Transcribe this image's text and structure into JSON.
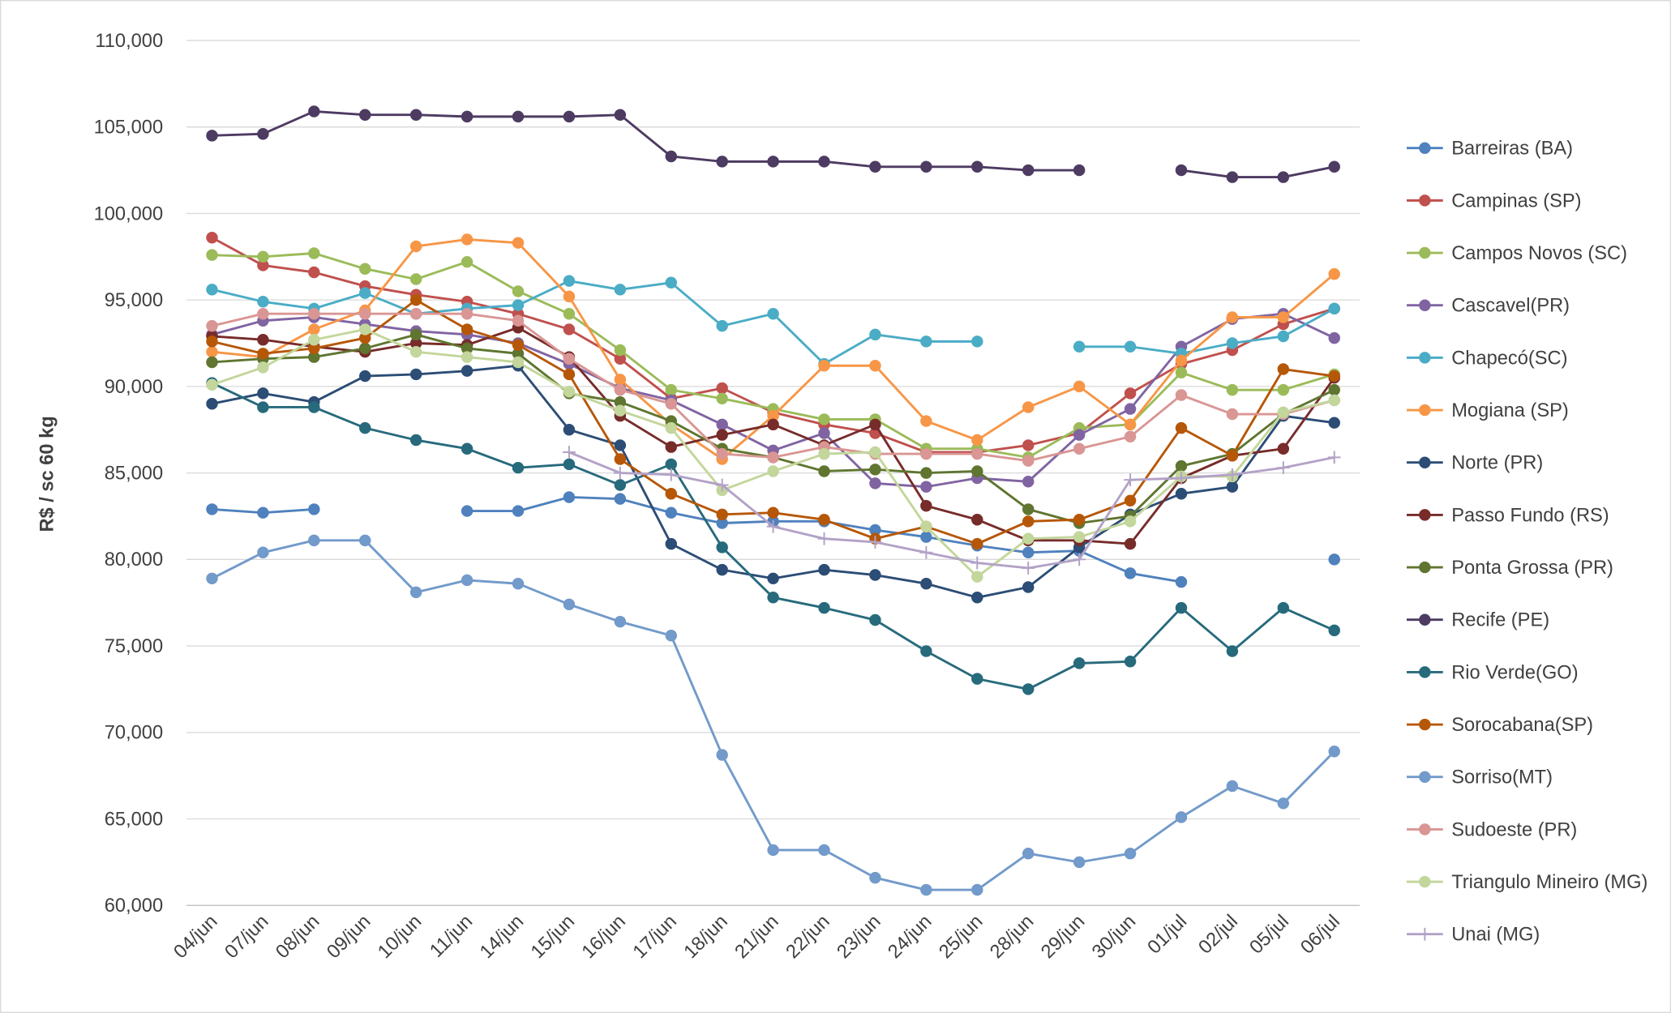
{
  "chart_data": {
    "type": "line",
    "y_label": "R$ / sc 60 kg",
    "categories": [
      "04/jun",
      "07/jun",
      "08/jun",
      "09/jun",
      "10/jun",
      "11/jun",
      "14/jun",
      "15/jun",
      "16/jun",
      "17/jun",
      "18/jun",
      "21/jun",
      "22/jun",
      "23/jun",
      "24/jun",
      "25/jun",
      "28/jun",
      "29/jun",
      "30/jun",
      "01/jul",
      "02/jul",
      "05/jul",
      "06/jul"
    ],
    "ylim": [
      60000,
      110000
    ],
    "yticks": [
      {
        "value": 60000,
        "label": "60,000"
      },
      {
        "value": 65000,
        "label": "65,000"
      },
      {
        "value": 70000,
        "label": "70,000"
      },
      {
        "value": 75000,
        "label": "75,000"
      },
      {
        "value": 80000,
        "label": "80,000"
      },
      {
        "value": 85000,
        "label": "85,000"
      },
      {
        "value": 90000,
        "label": "90,000"
      },
      {
        "value": 95000,
        "label": "95,000"
      },
      {
        "value": 100000,
        "label": "100,000"
      },
      {
        "value": 105000,
        "label": "105,000"
      },
      {
        "value": 110000,
        "label": "110,000"
      }
    ],
    "grid": true,
    "legend": "right",
    "series": [
      {
        "name": "Barreiras (BA)",
        "color": "#4f81bd",
        "marker": "circle",
        "values": [
          82900,
          82700,
          82900,
          null,
          null,
          82800,
          82800,
          83600,
          83500,
          82700,
          82100,
          82200,
          82200,
          81700,
          81300,
          80800,
          80400,
          80500,
          79200,
          78700,
          null,
          null,
          80000
        ]
      },
      {
        "name": "Campinas (SP)",
        "color": "#c0504d",
        "marker": "circle",
        "values": [
          98600,
          97000,
          96600,
          95800,
          95300,
          94900,
          94200,
          93300,
          91600,
          89300,
          89900,
          88500,
          87800,
          87300,
          86200,
          86200,
          86600,
          87300,
          89600,
          91300,
          92100,
          93600,
          94500
        ]
      },
      {
        "name": "Campos Novos (SC)",
        "color": "#9bbb59",
        "marker": "circle",
        "values": [
          97600,
          97500,
          97700,
          96800,
          96200,
          97200,
          95500,
          94200,
          92100,
          89800,
          89300,
          88700,
          88100,
          88100,
          86400,
          86400,
          85900,
          87600,
          87800,
          90800,
          89800,
          89800,
          90700
        ]
      },
      {
        "name": "Cascavel(PR)",
        "color": "#8064a2",
        "marker": "circle",
        "values": [
          93000,
          93800,
          94000,
          93600,
          93200,
          93000,
          92500,
          91300,
          89900,
          89200,
          87800,
          86300,
          87300,
          84400,
          84200,
          84700,
          84500,
          87200,
          88700,
          92300,
          93900,
          94200,
          92800
        ]
      },
      {
        "name": "Chapecó(SC)",
        "color": "#4bacc6",
        "marker": "circle",
        "values": [
          95600,
          94900,
          94500,
          95400,
          94200,
          94500,
          94700,
          96100,
          95600,
          96000,
          93500,
          94200,
          91300,
          93000,
          92600,
          92600,
          null,
          92300,
          92300,
          91900,
          92500,
          92900,
          94500
        ]
      },
      {
        "name": "Mogiana (SP)",
        "color": "#f79646",
        "marker": "circle",
        "values": [
          92000,
          91700,
          93300,
          94400,
          98100,
          98500,
          98300,
          95200,
          90400,
          87800,
          85800,
          88300,
          91200,
          91200,
          88000,
          86900,
          88800,
          90000,
          87800,
          91500,
          94000,
          94000,
          96500
        ]
      },
      {
        "name": "Norte (PR)",
        "color": "#2c4d75",
        "marker": "circle",
        "values": [
          89000,
          89600,
          89100,
          90600,
          90700,
          90900,
          91200,
          87500,
          86600,
          80900,
          79400,
          78900,
          79400,
          79100,
          78600,
          77800,
          78400,
          80700,
          82600,
          83800,
          84200,
          88300,
          87900
        ]
      },
      {
        "name": "Passo Fundo (RS)",
        "color": "#772c2a",
        "marker": "circle",
        "values": [
          92900,
          92700,
          92300,
          92000,
          92500,
          92400,
          93400,
          91700,
          88300,
          86500,
          87200,
          87800,
          86600,
          87800,
          83100,
          82300,
          81100,
          81100,
          80900,
          84700,
          86000,
          86400,
          90500
        ]
      },
      {
        "name": "Ponta Grossa (PR)",
        "color": "#5f7530",
        "marker": "circle",
        "values": [
          91400,
          91600,
          91700,
          92200,
          93000,
          92200,
          91900,
          89600,
          89100,
          88000,
          86400,
          85900,
          85100,
          85200,
          85000,
          85100,
          82900,
          82100,
          82500,
          85400,
          86100,
          88400,
          89800
        ]
      },
      {
        "name": "Recife (PE)",
        "color": "#4d3b62",
        "marker": "circle",
        "values": [
          104500,
          104600,
          105900,
          105700,
          105700,
          105600,
          105600,
          105600,
          105700,
          103300,
          103000,
          103000,
          103000,
          102700,
          102700,
          102700,
          102500,
          102500,
          null,
          102500,
          102100,
          102100,
          102700
        ]
      },
      {
        "name": "Rio Verde(GO)",
        "color": "#276a7c",
        "marker": "circle",
        "values": [
          90200,
          88800,
          88800,
          87600,
          86900,
          86400,
          85300,
          85500,
          84300,
          85500,
          80700,
          77800,
          77200,
          76500,
          74700,
          73100,
          72500,
          74000,
          74100,
          77200,
          74700,
          77200,
          75900
        ]
      },
      {
        "name": "Sorocabana(SP)",
        "color": "#b65708",
        "marker": "circle",
        "values": [
          92600,
          91900,
          92200,
          92800,
          95000,
          93300,
          92400,
          90700,
          85800,
          83800,
          82600,
          82700,
          82300,
          81200,
          81900,
          80900,
          82200,
          82300,
          83400,
          87600,
          86000,
          91000,
          90600
        ]
      },
      {
        "name": "Sorriso(MT)",
        "color": "#729aca",
        "marker": "circle",
        "values": [
          78900,
          80400,
          81100,
          81100,
          78100,
          78800,
          78600,
          77400,
          76400,
          75600,
          68700,
          63200,
          63200,
          61600,
          60900,
          60900,
          63000,
          62500,
          63000,
          65100,
          66900,
          65900,
          68900
        ]
      },
      {
        "name": "Sudoeste (PR)",
        "color": "#d99694",
        "marker": "circle",
        "values": [
          93500,
          94200,
          94200,
          94200,
          94200,
          94200,
          93800,
          91600,
          89800,
          89000,
          86100,
          85900,
          86500,
          86100,
          86100,
          86100,
          85700,
          86400,
          87100,
          89500,
          88400,
          88400,
          89200
        ]
      },
      {
        "name": "Triangulo Mineiro (MG)",
        "color": "#c3d69b",
        "marker": "circle",
        "values": [
          90100,
          91100,
          92700,
          93300,
          92000,
          91700,
          91400,
          89700,
          88600,
          87600,
          84000,
          85100,
          86100,
          86200,
          81900,
          79000,
          81200,
          81300,
          82200,
          84800,
          84800,
          88500,
          89200
        ]
      },
      {
        "name": "Unai (MG)",
        "color": "#b3a2c7",
        "marker": "plus",
        "values": [
          null,
          null,
          null,
          null,
          null,
          null,
          null,
          86200,
          85000,
          84900,
          84300,
          81900,
          81200,
          81000,
          80400,
          79800,
          79500,
          80000,
          84600,
          84700,
          84900,
          85300,
          85900
        ]
      }
    ]
  }
}
